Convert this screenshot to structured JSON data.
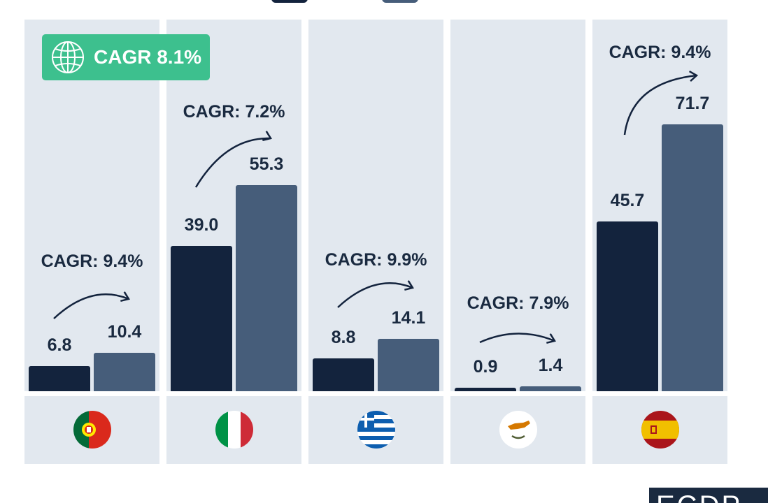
{
  "chart_data": {
    "type": "bar",
    "categories": [
      "Portugal",
      "Italy",
      "Greece",
      "Cyprus",
      "Spain"
    ],
    "series": [
      {
        "values": [
          6.8,
          39.0,
          8.8,
          0.9,
          45.7
        ],
        "color": "#13233d"
      },
      {
        "values": [
          10.4,
          55.3,
          14.1,
          1.4,
          71.7
        ],
        "color": "#465d7a"
      }
    ],
    "value_labels": [
      [
        "6.8",
        "39.0",
        "8.8",
        "0.9",
        "45.7"
      ],
      [
        "10.4",
        "55.3",
        "14.1",
        "1.4",
        "71.7"
      ]
    ],
    "cagr_labels": [
      "CAGR: 9.4%",
      "CAGR: 7.2%",
      "CAGR: 9.9%",
      "CAGR: 7.9%",
      "CAGR: 9.4%"
    ],
    "overall_cagr": "CAGR 8.1%",
    "flags": [
      "portugal-flag-icon",
      "italy-flag-icon",
      "greece-flag-icon",
      "cyprus-flag-icon",
      "spain-flag-icon"
    ],
    "ylim": [
      0,
      85
    ],
    "grid": false,
    "legend": "top"
  },
  "colors": {
    "panel": "#e2e8ef",
    "badge": "#3dc08e",
    "text": "#1a2a40"
  }
}
